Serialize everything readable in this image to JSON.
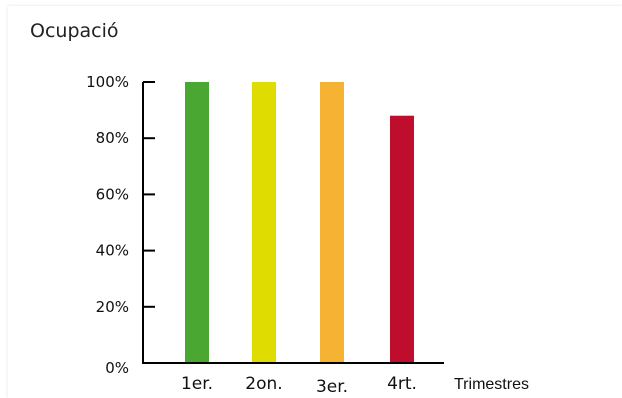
{
  "chart_data": {
    "type": "bar",
    "title": "Ocupació",
    "xlabel": "Trimestres",
    "ylabel": "",
    "categories": [
      "1er.",
      "2on.",
      "3er.",
      "4rt."
    ],
    "values": [
      100,
      100,
      100,
      88
    ],
    "colors": [
      "#4aa832",
      "#dedc00",
      "#f6b233",
      "#bf0d2e"
    ],
    "ylim": [
      0,
      100
    ],
    "yticks": [
      0,
      20,
      40,
      60,
      80,
      100
    ],
    "ytick_labels": [
      "0%",
      "20%",
      "40%",
      "60%",
      "80%",
      "100%"
    ],
    "grid": false,
    "legend": "none"
  }
}
